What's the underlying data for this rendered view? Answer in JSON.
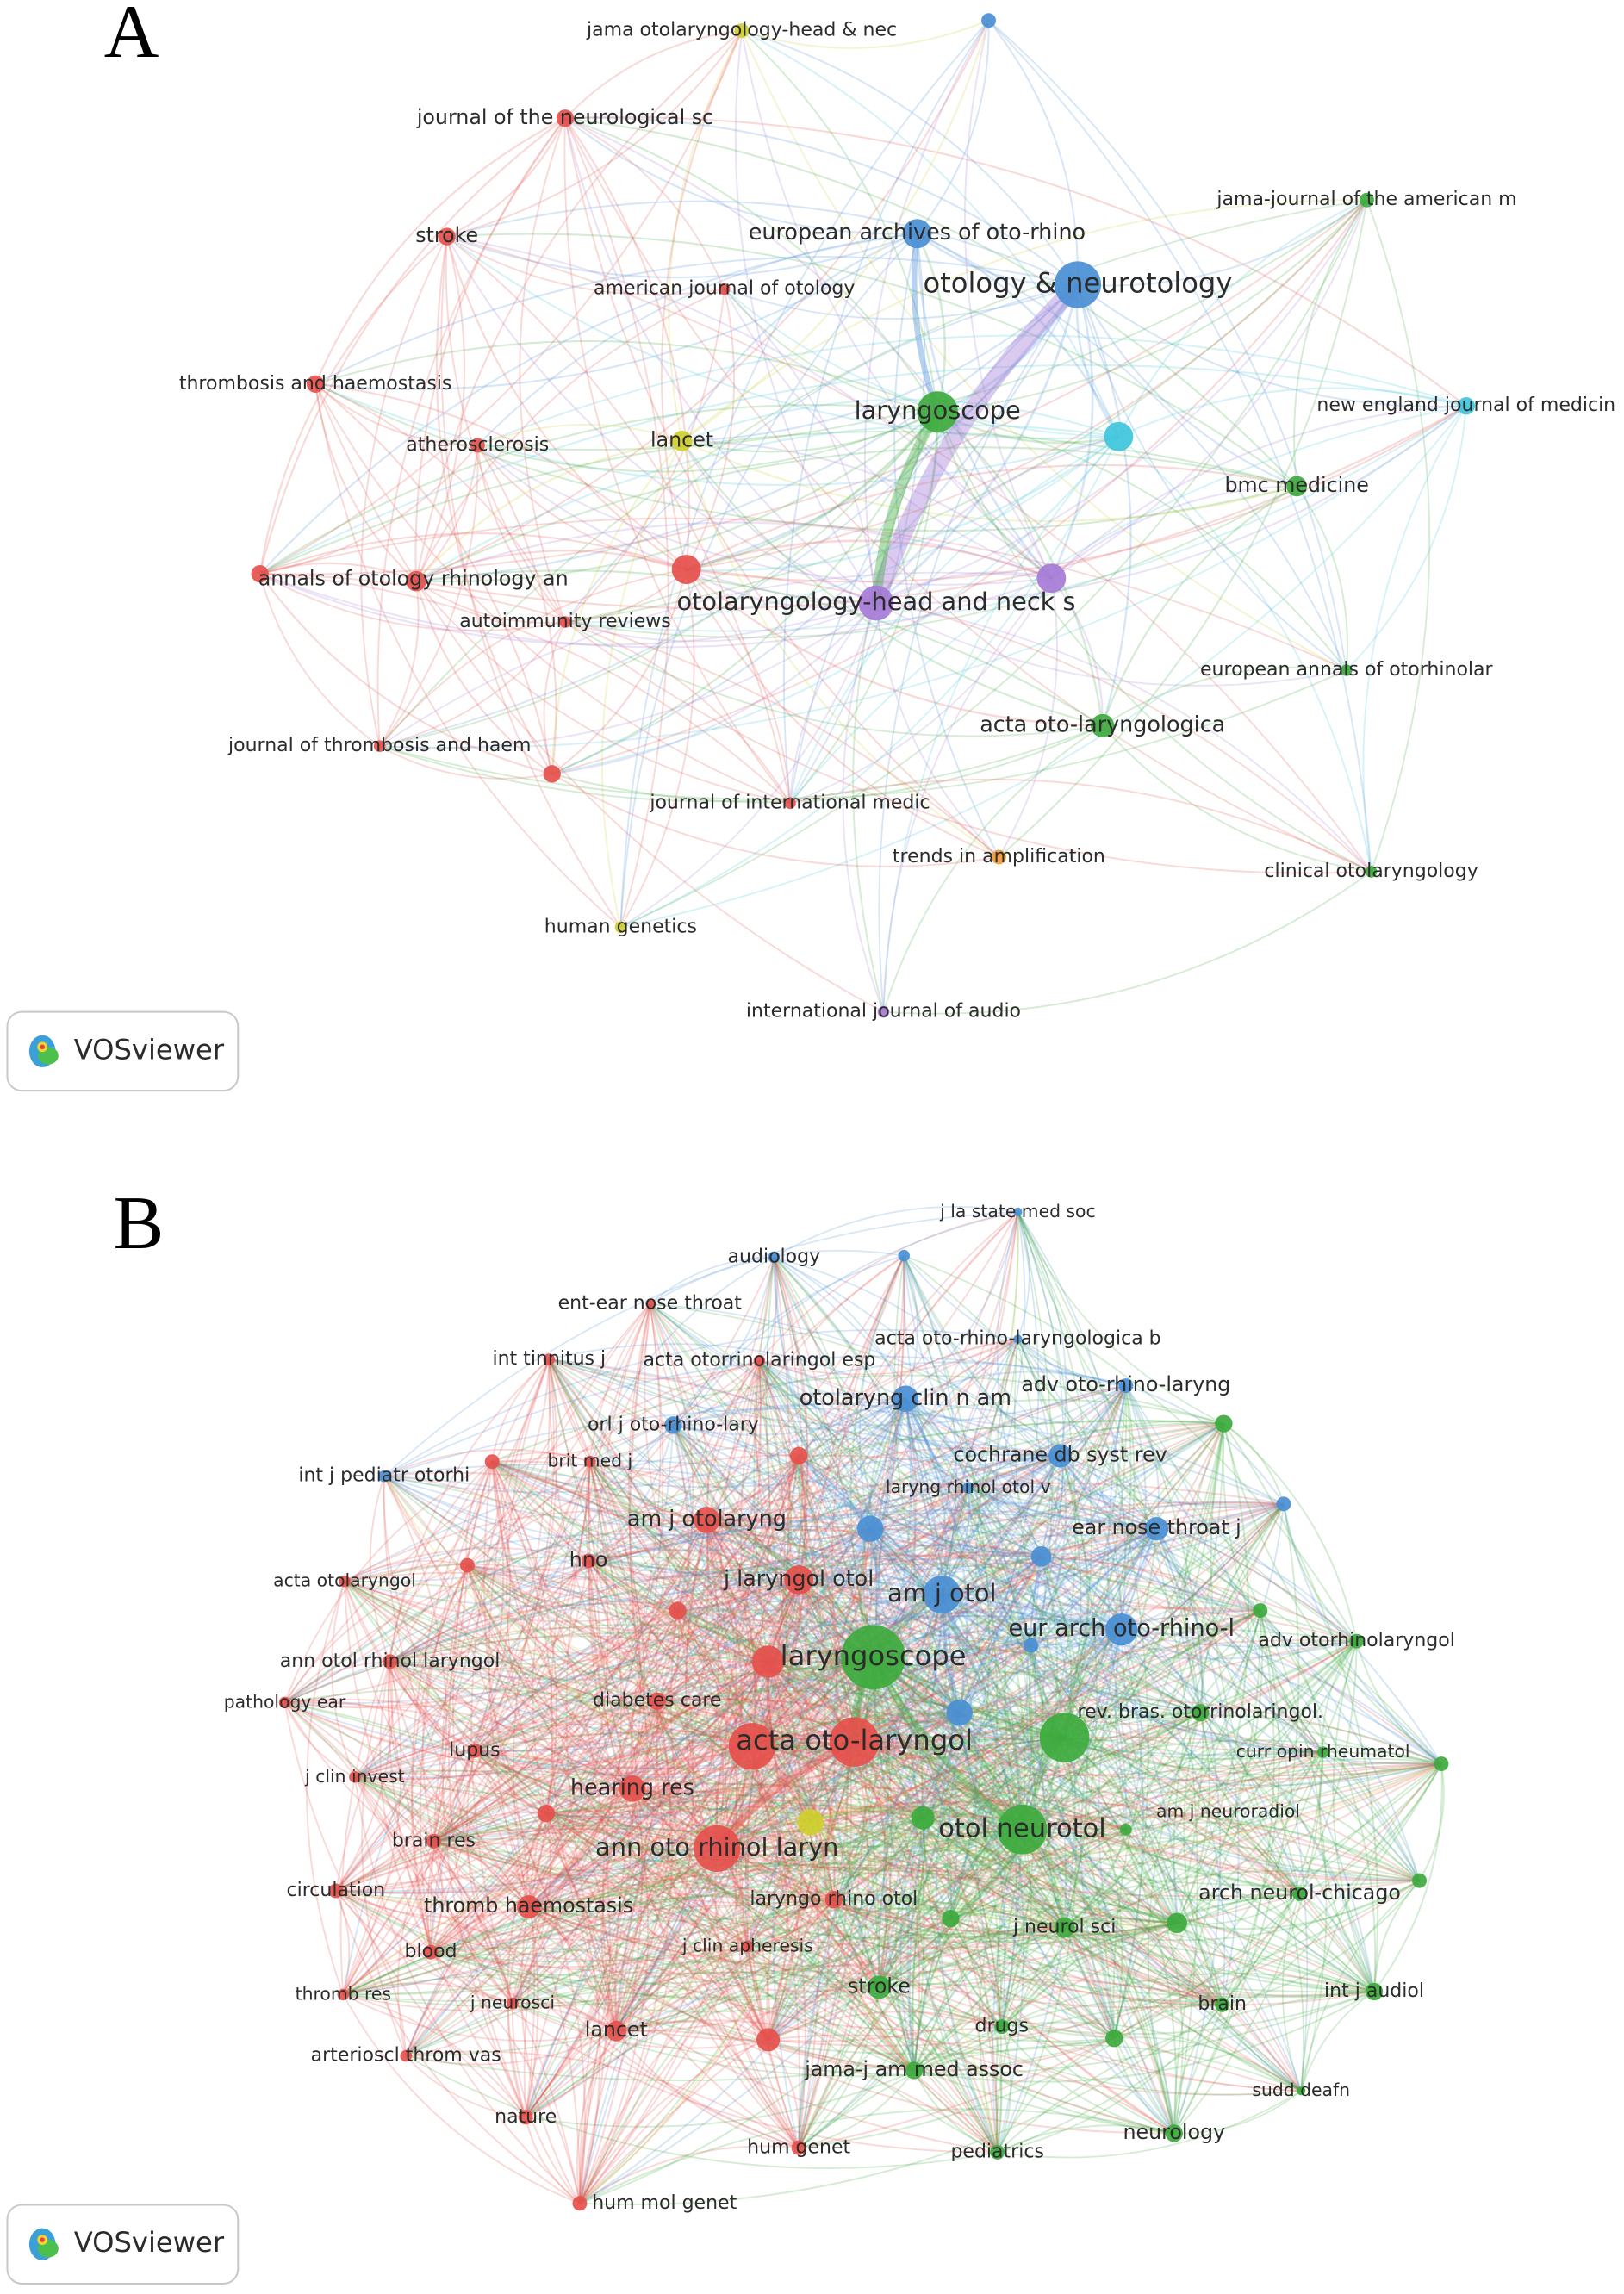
{
  "panels": [
    {
      "letter": "A",
      "logo": "VOSviewer",
      "nodes": [
        "jama otolaryngology-head & nec",
        "journal of the neurological sc",
        "stroke",
        "european archives of oto-rhino",
        "otology & neurotology",
        "jama-journal of the american m",
        "american journal of otology",
        "thrombosis and haemostasis",
        "atherosclerosis",
        "lancet",
        "laryngoscope",
        "new england journal of medicin",
        "bmc medicine",
        "annals of otology rhinology an",
        "otolaryngology-head and neck s",
        "autoimmunity reviews",
        "european annals of otorhinolar",
        "acta oto-laryngologica",
        "journal of thrombosis and haem",
        "journal of international medic",
        "trends in amplification",
        "clinical otolaryngology",
        "human genetics",
        "international journal of audio"
      ]
    },
    {
      "letter": "B",
      "logo": "VOSviewer",
      "nodes": [
        "j la state med soc",
        "audiology",
        "ent-ear nose throat",
        "acta oto-rhino-laryngologica b",
        "int tinnitus j",
        "acta otorrinolaringol esp",
        "adv oto-rhino-laryng",
        "otolaryng clin n am",
        "orl j oto-rhino-lary",
        "cochrane db syst rev",
        "brit med j",
        "int j pediatr otorhi",
        "laryng rhinol otol v",
        "am j otolaryng",
        "ear nose throat j",
        "hno",
        "acta otolaryngol",
        "j laryngol otol",
        "am j otol",
        "eur arch oto-rhino-l",
        "adv otorhinolaryngol",
        "laryngoscope",
        "ann otol rhinol laryngol",
        "pathology ear",
        "diabetes care",
        "rev. bras. otorrinolaringol.",
        "acta oto-laryngol",
        "lupus",
        "curr opin rheumatol",
        "j clin invest",
        "hearing res",
        "am j neuroradiol",
        "otol neurotol",
        "ann oto rhinol laryn",
        "brain res",
        "circulation",
        "arch neurol-chicago",
        "laryngo rhino otol",
        "thromb haemostasis",
        "j neurol sci",
        "j clin apheresis",
        "blood",
        "stroke",
        "int j audiol",
        "thromb res",
        "j neurosci",
        "brain",
        "lancet",
        "drugs",
        "arterioscl throm vas",
        "jama-j am med assoc",
        "sudd deafn",
        "nature",
        "neurology",
        "hum genet",
        "pediatrics",
        "hum mol genet"
      ]
    }
  ]
}
